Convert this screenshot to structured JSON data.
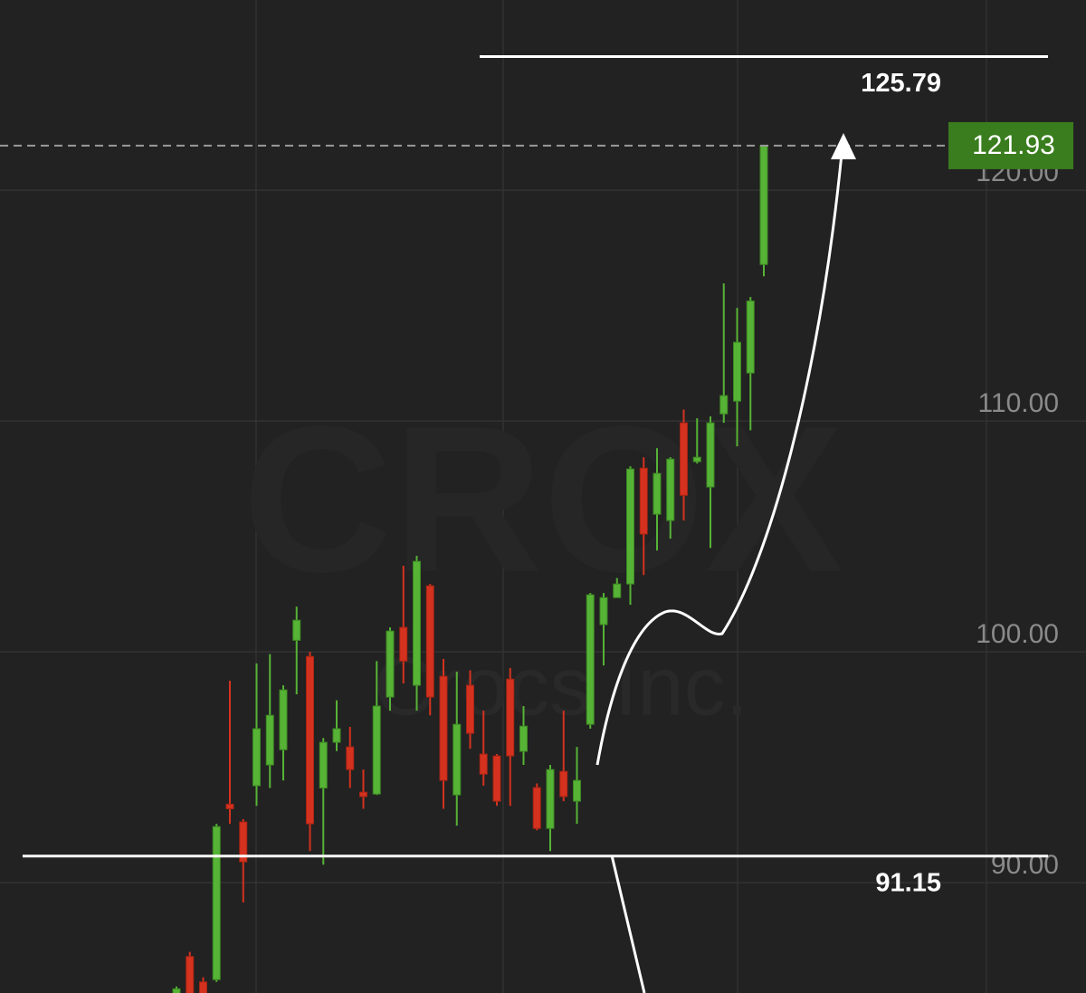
{
  "chart_data": {
    "type": "candlestick",
    "watermark": "CROX",
    "watermark_subtitle": "Crocs Inc.",
    "categories": [
      null,
      null,
      null,
      null,
      null,
      null,
      null,
      null,
      null,
      null,
      null,
      null,
      null,
      null,
      null,
      null,
      null,
      null,
      null,
      null,
      null,
      null,
      null,
      null,
      null,
      null,
      null,
      null,
      null,
      null,
      null,
      null,
      null,
      null,
      null,
      null,
      null,
      null,
      null,
      null,
      null,
      null,
      null,
      null,
      null
    ],
    "open": [
      85.2,
      86.8,
      85.7,
      85.8,
      93.4,
      92.63,
      94.2,
      95.1,
      95.76,
      100.5,
      99.8,
      94.1,
      96.08,
      95.88,
      93.92,
      93.84,
      98.04,
      101.06,
      98.55,
      102.86,
      98.94,
      93.8,
      98.55,
      95.57,
      95.49,
      98.82,
      95.69,
      94.12,
      92.35,
      94.82,
      93.53,
      96.86,
      101.18,
      102.35,
      102.94,
      107.96,
      105.96,
      105.69,
      109.92,
      108.24,
      107.14,
      110.31,
      110.86,
      112.08,
      116.78
    ],
    "high": [
      85.5,
      87.0,
      85.9,
      92.55,
      98.75,
      92.75,
      99.5,
      99.9,
      98.55,
      101.96,
      100.0,
      96.27,
      97.9,
      96.75,
      94.9,
      99.6,
      101.06,
      103.73,
      104.16,
      102.94,
      99.69,
      99.14,
      99.2,
      97.45,
      95.57,
      99.3,
      97.65,
      94.3,
      95.1,
      97.45,
      95.88,
      102.55,
      102.55,
      103.2,
      108.04,
      108.43,
      108.82,
      108.43,
      110.5,
      110.12,
      110.2,
      115.96,
      114.9,
      115.37,
      121.96
    ],
    "low": [
      85.2,
      85.2,
      85.2,
      85.7,
      92.55,
      89.14,
      93.33,
      94.1,
      94.43,
      98.16,
      91.37,
      90.78,
      95.7,
      94.1,
      93.2,
      93.8,
      97.45,
      98.63,
      97.45,
      97.25,
      93.2,
      92.47,
      95.8,
      94.2,
      93.33,
      93.33,
      95.1,
      92.27,
      91.37,
      93.53,
      92.55,
      96.67,
      99.41,
      102.35,
      102.04,
      103.33,
      104.39,
      104.9,
      105.69,
      108.16,
      104.5,
      109.92,
      108.9,
      109.6,
      116.27
    ],
    "close": [
      85.4,
      85.2,
      85.2,
      92.43,
      93.2,
      90.9,
      96.67,
      97.25,
      98.35,
      101.37,
      92.55,
      96.08,
      96.67,
      94.9,
      93.73,
      97.65,
      100.9,
      99.6,
      103.92,
      98.04,
      94.43,
      96.86,
      96.47,
      94.7,
      93.53,
      95.49,
      96.78,
      92.35,
      94.9,
      93.73,
      94.43,
      102.47,
      102.35,
      102.94,
      107.92,
      105.1,
      107.73,
      108.35,
      106.78,
      108.43,
      109.92,
      111.1,
      113.41,
      115.2,
      121.93
    ],
    "up_color": "#56b336",
    "down_color": "#d4321f",
    "ylim": [
      85.22,
      128.24
    ],
    "yticks": [
      {
        "value": 90,
        "label": "90.00"
      },
      {
        "value": 100,
        "label": "100.00"
      },
      {
        "value": 110,
        "label": "110.00"
      },
      {
        "value": 120,
        "label": "120.00"
      }
    ],
    "grid": true,
    "levels": [
      {
        "value": 125.79,
        "label": "125.79"
      },
      {
        "value": 91.15,
        "label": "91.15"
      }
    ],
    "last_price": 121.93,
    "last_price_color": "#3a7d1e"
  }
}
